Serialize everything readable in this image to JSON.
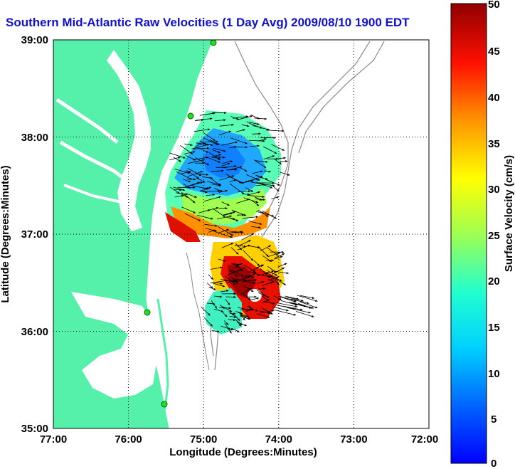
{
  "title": "Southern Mid-Atlantic Raw Velocities (1 Day Avg) 2009/08/10 1900 EDT",
  "xlabel": "Longitude (Degrees:Minutes)",
  "ylabel": "Latitude (Degrees:Minutes)",
  "colorbar_label": "Surface Velocity (cm/s)",
  "x_ticks": [
    "77:00",
    "76:00",
    "75:00",
    "74:00",
    "73:00",
    "72:00"
  ],
  "y_ticks": [
    "39:00",
    "38:00",
    "37:00",
    "36:00",
    "35:00"
  ],
  "colorbar_ticks": [
    "50",
    "45",
    "40",
    "35",
    "30",
    "25",
    "20",
    "15",
    "10",
    "5",
    "0"
  ],
  "colors": {
    "land": "#55f0aa",
    "water": "#ffffff",
    "title": "#1010d0",
    "bathymetry": "#8a8a8a",
    "station": "#22dd22"
  },
  "chart_data": {
    "type": "heatmap",
    "title": "Southern Mid-Atlantic Raw Velocities (1 Day Avg) 2009/08/10 1900 EDT",
    "xlabel": "Longitude (Degrees:Minutes)",
    "ylabel": "Latitude (Degrees:Minutes)",
    "xlim": [
      -77,
      -72
    ],
    "ylim": [
      35,
      39
    ],
    "colorbar_range": [
      0,
      50
    ],
    "colorbar_units": "cm/s",
    "grid": true
  }
}
